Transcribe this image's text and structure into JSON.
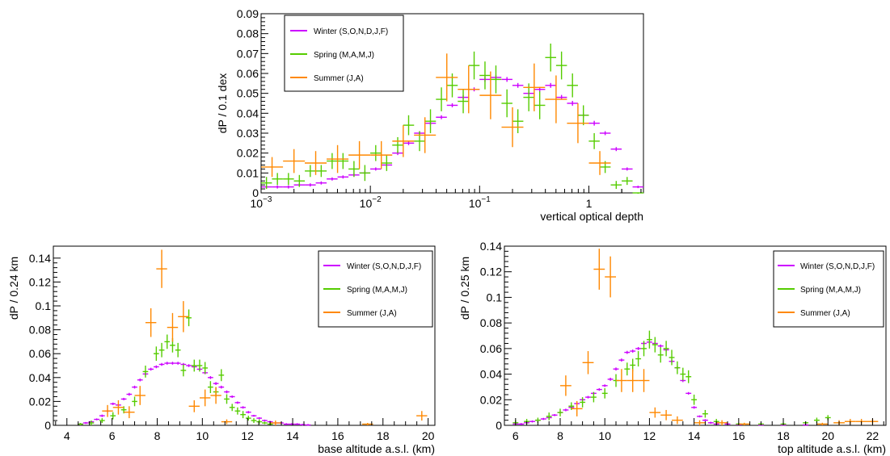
{
  "colors": {
    "winter": "#cc00ff",
    "spring": "#55cc00",
    "summer": "#ff8800"
  },
  "chart_data": [
    {
      "type": "scatter",
      "xlabel": "vertical optical depth",
      "ylabel": "dP / 0.1 dex",
      "xscale": "log",
      "xlim": [
        0.001,
        3.16
      ],
      "ylim": [
        0,
        0.09
      ],
      "yticks": [
        "0",
        "0.01",
        "0.02",
        "0.03",
        "0.04",
        "0.05",
        "0.06",
        "0.07",
        "0.08",
        "0.09"
      ],
      "xticks": [
        {
          "value": 0.001,
          "base": "10",
          "exp": "−3"
        },
        {
          "value": 0.01,
          "base": "10",
          "exp": "−2"
        },
        {
          "value": 0.1,
          "base": "10",
          "exp": "−1"
        },
        {
          "value": 1,
          "base": "1",
          "exp": ""
        }
      ],
      "legend": {
        "position": "top-left",
        "labels": [
          "Winter (S,O,N,D,J,F)",
          "Spring (M,A,M,J)",
          "Summer (J,A)"
        ]
      },
      "series": [
        {
          "name": "Winter (S,O,N,D,J,F)",
          "color_key": "winter",
          "log_x": true,
          "x": [
            0.00112,
            0.00141,
            0.00178,
            0.00224,
            0.00282,
            0.00355,
            0.00447,
            0.00562,
            0.00708,
            0.00891,
            0.0112,
            0.0141,
            0.0178,
            0.0224,
            0.0282,
            0.0355,
            0.0447,
            0.0562,
            0.0708,
            0.0891,
            0.112,
            0.141,
            0.178,
            0.224,
            0.282,
            0.355,
            0.447,
            0.562,
            0.708,
            0.891,
            1.12,
            1.41,
            1.78,
            2.24,
            2.82
          ],
          "y": [
            0.003,
            0.003,
            0.003,
            0.004,
            0.004,
            0.005,
            0.007,
            0.008,
            0.009,
            0.01,
            0.012,
            0.014,
            0.02,
            0.025,
            0.03,
            0.035,
            0.038,
            0.044,
            0.048,
            0.052,
            0.057,
            0.058,
            0.057,
            0.054,
            0.05,
            0.052,
            0.054,
            0.048,
            0.045,
            0.039,
            0.035,
            0.03,
            0.022,
            0.012,
            0.003
          ],
          "yerr": [
            0.0008,
            0.0008,
            0.0008,
            0.0008,
            0.0008,
            0.0008,
            0.0008,
            0.0008,
            0.0008,
            0.0008,
            0.0008,
            0.0008,
            0.001,
            0.001,
            0.001,
            0.001,
            0.001,
            0.001,
            0.001,
            0.001,
            0.0012,
            0.0012,
            0.0012,
            0.0012,
            0.0012,
            0.0012,
            0.0012,
            0.0012,
            0.0012,
            0.0012,
            0.0012,
            0.001,
            0.001,
            0.0008,
            0.0006
          ],
          "xerr_dex": 0.05
        },
        {
          "name": "Spring (M,A,M,J)",
          "color_key": "spring",
          "log_x": true,
          "x": [
            0.00112,
            0.00141,
            0.00178,
            0.00224,
            0.00282,
            0.00355,
            0.00447,
            0.00562,
            0.00708,
            0.00891,
            0.0112,
            0.0141,
            0.0178,
            0.0224,
            0.0282,
            0.0355,
            0.0447,
            0.0562,
            0.0708,
            0.0891,
            0.112,
            0.141,
            0.178,
            0.224,
            0.282,
            0.355,
            0.447,
            0.562,
            0.708,
            0.891,
            1.12,
            1.41,
            1.78,
            2.24,
            2.82
          ],
          "y": [
            0.005,
            0.007,
            0.007,
            0.006,
            0.011,
            0.011,
            0.016,
            0.016,
            0.012,
            0.01,
            0.02,
            0.015,
            0.024,
            0.034,
            0.026,
            0.036,
            0.047,
            0.054,
            0.046,
            0.064,
            0.059,
            0.057,
            0.045,
            0.036,
            0.048,
            0.044,
            0.068,
            0.064,
            0.054,
            0.039,
            0.026,
            0.013,
            0.004,
            0.006,
            0.0
          ],
          "yerr": [
            0.003,
            0.003,
            0.003,
            0.003,
            0.003,
            0.003,
            0.004,
            0.004,
            0.004,
            0.004,
            0.004,
            0.004,
            0.004,
            0.005,
            0.005,
            0.006,
            0.006,
            0.006,
            0.006,
            0.007,
            0.007,
            0.007,
            0.007,
            0.006,
            0.007,
            0.007,
            0.007,
            0.007,
            0.006,
            0.005,
            0.004,
            0.003,
            0.002,
            0.002,
            0.0
          ],
          "xerr_dex": 0.05
        },
        {
          "name": "Summer (J,A)",
          "color_key": "summer",
          "log_x": true,
          "x": [
            0.00126,
            0.002,
            0.00316,
            0.00501,
            0.00794,
            0.0126,
            0.02,
            0.0316,
            0.0501,
            0.0794,
            0.126,
            0.2,
            0.316,
            0.501,
            0.794,
            1.26
          ],
          "y": [
            0.013,
            0.016,
            0.015,
            0.017,
            0.019,
            0.019,
            0.026,
            0.029,
            0.058,
            0.052,
            0.049,
            0.033,
            0.053,
            0.047,
            0.035,
            0.015
          ],
          "yerr": [
            0.005,
            0.006,
            0.006,
            0.007,
            0.007,
            0.007,
            0.008,
            0.009,
            0.012,
            0.012,
            0.012,
            0.01,
            0.012,
            0.012,
            0.01,
            0.006
          ],
          "xerr_dex": 0.1
        }
      ]
    },
    {
      "type": "scatter",
      "xlabel": "base altitude a.s.l. (km)",
      "ylabel": "dP / 0.24 km",
      "xlim": [
        3.4,
        20.3
      ],
      "ylim": [
        0,
        0.15
      ],
      "yticks": [
        "0",
        "0.02",
        "0.04",
        "0.06",
        "0.08",
        "0.1",
        "0.12",
        "0.14"
      ],
      "xticks": [
        "4",
        "6",
        "8",
        "10",
        "12",
        "14",
        "16",
        "18",
        "20"
      ],
      "legend": {
        "position": "top-right",
        "labels": [
          "Winter (S,O,N,D,J,F)",
          "Spring (M,A,M,J)",
          "Summer (J,A)"
        ]
      },
      "series": [
        {
          "name": "Winter (S,O,N,D,J,F)",
          "color_key": "winter",
          "x": [
            4.6,
            4.84,
            5.08,
            5.32,
            5.56,
            5.8,
            6.04,
            6.28,
            6.52,
            6.76,
            7.0,
            7.24,
            7.48,
            7.72,
            7.96,
            8.2,
            8.44,
            8.68,
            8.92,
            9.16,
            9.4,
            9.64,
            9.88,
            10.12,
            10.36,
            10.6,
            10.84,
            11.08,
            11.32,
            11.56,
            11.8,
            12.04,
            12.28,
            12.52,
            12.76,
            13.0,
            13.24,
            13.48,
            13.72,
            13.96,
            14.2,
            14.44,
            14.68
          ],
          "y": [
            0.001,
            0.002,
            0.003,
            0.005,
            0.008,
            0.012,
            0.018,
            0.017,
            0.022,
            0.026,
            0.032,
            0.038,
            0.043,
            0.047,
            0.049,
            0.051,
            0.052,
            0.052,
            0.052,
            0.051,
            0.05,
            0.049,
            0.047,
            0.044,
            0.04,
            0.035,
            0.032,
            0.028,
            0.024,
            0.019,
            0.015,
            0.011,
            0.008,
            0.006,
            0.004,
            0.003,
            0.002,
            0.002,
            0.001,
            0.001,
            0.001,
            0.0005,
            0.0003
          ],
          "yerr": [
            0.0008,
            0.0008,
            0.0008,
            0.0008,
            0.001,
            0.001,
            0.001,
            0.001,
            0.001,
            0.0012,
            0.0012,
            0.0012,
            0.0012,
            0.0012,
            0.0012,
            0.0012,
            0.0012,
            0.0012,
            0.0012,
            0.0012,
            0.0012,
            0.0012,
            0.0012,
            0.0012,
            0.0012,
            0.0012,
            0.0012,
            0.0012,
            0.001,
            0.001,
            0.001,
            0.001,
            0.0008,
            0.0008,
            0.0008,
            0.0008,
            0.0008,
            0.0008,
            0.0008,
            0.0008,
            0.0008,
            0.0008,
            0.0008
          ],
          "xerr": 0.12
        },
        {
          "name": "Spring (M,A,M,J)",
          "color_key": "spring",
          "x": [
            4.6,
            5.08,
            5.56,
            6.04,
            6.52,
            7.0,
            7.48,
            7.96,
            8.2,
            8.44,
            8.68,
            8.92,
            9.16,
            9.4,
            9.64,
            9.88,
            10.12,
            10.36,
            10.6,
            10.84,
            11.08,
            11.32,
            11.56,
            11.8,
            12.04,
            12.28,
            12.52,
            12.76,
            13.0
          ],
          "y": [
            0.001,
            0.002,
            0.004,
            0.008,
            0.013,
            0.02,
            0.045,
            0.06,
            0.063,
            0.07,
            0.067,
            0.063,
            0.046,
            0.09,
            0.05,
            0.05,
            0.048,
            0.032,
            0.028,
            0.042,
            0.022,
            0.015,
            0.012,
            0.009,
            0.006,
            0.004,
            0.003,
            0.002,
            0.001
          ],
          "yerr": [
            0.001,
            0.002,
            0.002,
            0.003,
            0.003,
            0.004,
            0.005,
            0.006,
            0.006,
            0.006,
            0.006,
            0.006,
            0.005,
            0.007,
            0.005,
            0.005,
            0.005,
            0.005,
            0.004,
            0.005,
            0.004,
            0.003,
            0.003,
            0.003,
            0.002,
            0.002,
            0.002,
            0.001,
            0.001
          ],
          "xerr": 0.12
        },
        {
          "name": "Summer (J,A)",
          "color_key": "summer",
          "x": [
            5.8,
            6.28,
            6.76,
            7.24,
            7.72,
            8.2,
            8.68,
            9.16,
            9.64,
            10.12,
            10.6,
            11.08,
            13.24,
            17.32,
            19.72
          ],
          "y": [
            0.012,
            0.015,
            0.011,
            0.025,
            0.086,
            0.131,
            0.082,
            0.091,
            0.016,
            0.023,
            0.025,
            0.003,
            0.002,
            0.001,
            0.008
          ],
          "yerr": [
            0.005,
            0.006,
            0.005,
            0.008,
            0.012,
            0.016,
            0.012,
            0.013,
            0.005,
            0.007,
            0.007,
            0.002,
            0.002,
            0.001,
            0.004
          ],
          "xerr": 0.24
        }
      ]
    },
    {
      "type": "scatter",
      "xlabel": "top altitude a.s.l. (km)",
      "ylabel": "dP / 0.25 km",
      "xlim": [
        5.5,
        22.6
      ],
      "ylim": [
        0,
        0.14
      ],
      "yticks": [
        "0",
        "0.02",
        "0.04",
        "0.06",
        "0.08",
        "0.1",
        "0.12",
        "0.14"
      ],
      "xticks": [
        "6",
        "8",
        "10",
        "12",
        "14",
        "16",
        "18",
        "20",
        "22"
      ],
      "legend": {
        "position": "top-right",
        "labels": [
          "Winter (S,O,N,D,J,F)",
          "Spring (M,A,M,J)",
          "Summer (J,A)"
        ]
      },
      "series": [
        {
          "name": "Winter (S,O,N,D,J,F)",
          "color_key": "winter",
          "x": [
            6.0,
            6.25,
            6.5,
            6.75,
            7.0,
            7.25,
            7.5,
            7.75,
            8.0,
            8.25,
            8.5,
            8.75,
            9.0,
            9.25,
            9.5,
            9.75,
            10.0,
            10.25,
            10.5,
            10.75,
            11.0,
            11.25,
            11.5,
            11.75,
            12.0,
            12.25,
            12.5,
            12.75,
            13.0,
            13.25,
            13.5,
            13.75,
            14.0,
            14.25,
            14.5,
            14.75,
            15.0,
            15.5,
            16.0,
            17.0,
            18.0,
            19.0
          ],
          "y": [
            0.001,
            0.001,
            0.002,
            0.003,
            0.004,
            0.005,
            0.006,
            0.008,
            0.01,
            0.012,
            0.014,
            0.017,
            0.02,
            0.022,
            0.025,
            0.028,
            0.031,
            0.036,
            0.044,
            0.051,
            0.057,
            0.058,
            0.06,
            0.064,
            0.065,
            0.064,
            0.062,
            0.059,
            0.05,
            0.045,
            0.035,
            0.025,
            0.014,
            0.007,
            0.004,
            0.002,
            0.001,
            0.001,
            0.0005,
            0.0003,
            0.0003,
            0.0003
          ],
          "yerr": [
            0.0008,
            0.0008,
            0.0008,
            0.0008,
            0.0008,
            0.0008,
            0.0008,
            0.0008,
            0.0008,
            0.001,
            0.001,
            0.001,
            0.001,
            0.001,
            0.001,
            0.001,
            0.001,
            0.0012,
            0.0012,
            0.0012,
            0.0012,
            0.0012,
            0.0012,
            0.0012,
            0.0012,
            0.0012,
            0.0012,
            0.0012,
            0.0012,
            0.0012,
            0.0012,
            0.001,
            0.001,
            0.0008,
            0.0008,
            0.0008,
            0.0008,
            0.0008,
            0.0008,
            0.0008,
            0.0008,
            0.0008
          ],
          "xerr": 0.125
        },
        {
          "name": "Spring (M,A,M,J)",
          "color_key": "spring",
          "x": [
            6.0,
            6.5,
            7.0,
            7.5,
            8.0,
            8.5,
            9.0,
            9.5,
            10.0,
            10.5,
            11.0,
            11.25,
            11.5,
            11.75,
            12.0,
            12.25,
            12.5,
            12.75,
            13.0,
            13.25,
            13.5,
            13.75,
            14.0,
            14.5,
            15.0,
            16.0,
            17.0,
            18.0,
            19.0,
            19.5,
            20.0
          ],
          "y": [
            0.002,
            0.003,
            0.004,
            0.007,
            0.01,
            0.015,
            0.018,
            0.022,
            0.025,
            0.035,
            0.044,
            0.047,
            0.052,
            0.06,
            0.067,
            0.063,
            0.055,
            0.06,
            0.053,
            0.045,
            0.04,
            0.038,
            0.02,
            0.009,
            0.003,
            0.001,
            0.001,
            0.001,
            0.002,
            0.004,
            0.006
          ],
          "yerr": [
            0.002,
            0.002,
            0.002,
            0.003,
            0.003,
            0.003,
            0.004,
            0.004,
            0.004,
            0.005,
            0.005,
            0.005,
            0.006,
            0.006,
            0.007,
            0.006,
            0.006,
            0.006,
            0.006,
            0.005,
            0.005,
            0.005,
            0.004,
            0.003,
            0.002,
            0.001,
            0.001,
            0.001,
            0.001,
            0.002,
            0.002
          ],
          "xerr": 0.125
        },
        {
          "name": "Summer (J,A)",
          "color_key": "summer",
          "x": [
            8.25,
            8.75,
            9.25,
            9.75,
            10.25,
            10.75,
            11.25,
            11.75,
            12.25,
            12.75,
            13.25,
            14.25,
            15.25,
            16.25,
            19.75,
            20.5,
            21.0,
            21.5,
            22.0
          ],
          "y": [
            0.031,
            0.013,
            0.049,
            0.122,
            0.116,
            0.035,
            0.035,
            0.035,
            0.01,
            0.008,
            0.004,
            0.002,
            0.002,
            0.001,
            0.001,
            0.002,
            0.003,
            0.003,
            0.003
          ],
          "yerr": [
            0.008,
            0.006,
            0.009,
            0.016,
            0.016,
            0.009,
            0.009,
            0.009,
            0.004,
            0.004,
            0.003,
            0.002,
            0.002,
            0.001,
            0.001,
            0.002,
            0.002,
            0.002,
            0.002
          ],
          "xerr": 0.25
        }
      ]
    }
  ]
}
